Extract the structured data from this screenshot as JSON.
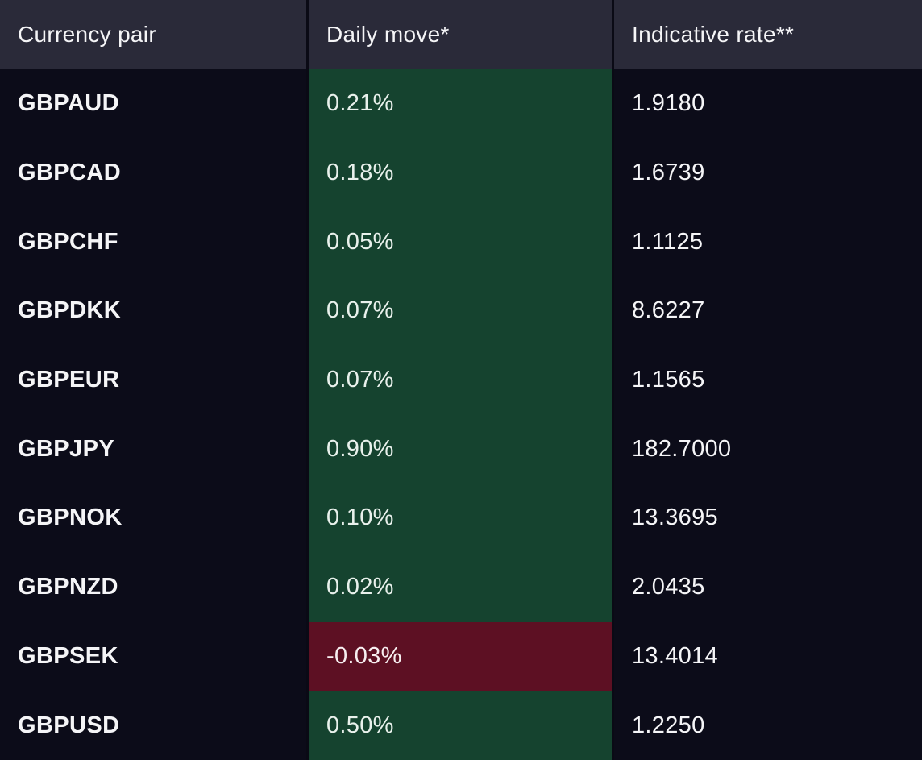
{
  "table": {
    "columns": [
      {
        "label": "Currency pair"
      },
      {
        "label": "Daily move*"
      },
      {
        "label": "Indicative rate**"
      }
    ],
    "rows": [
      {
        "pair": "GBPAUD",
        "daily_move": "0.21%",
        "rate": "1.9180",
        "direction": "up"
      },
      {
        "pair": "GBPCAD",
        "daily_move": "0.18%",
        "rate": "1.6739",
        "direction": "up"
      },
      {
        "pair": "GBPCHF",
        "daily_move": "0.05%",
        "rate": "1.1125",
        "direction": "up"
      },
      {
        "pair": "GBPDKK",
        "daily_move": "0.07%",
        "rate": "8.6227",
        "direction": "up"
      },
      {
        "pair": "GBPEUR",
        "daily_move": "0.07%",
        "rate": "1.1565",
        "direction": "up"
      },
      {
        "pair": "GBPJPY",
        "daily_move": "0.90%",
        "rate": "182.7000",
        "direction": "up"
      },
      {
        "pair": "GBPNOK",
        "daily_move": "0.10%",
        "rate": "13.3695",
        "direction": "up"
      },
      {
        "pair": "GBPNZD",
        "daily_move": "0.02%",
        "rate": "2.0435",
        "direction": "up"
      },
      {
        "pair": "GBPSEK",
        "daily_move": "-0.03%",
        "rate": "13.4014",
        "direction": "down"
      },
      {
        "pair": "GBPUSD",
        "daily_move": "0.50%",
        "rate": "1.2250",
        "direction": "up"
      }
    ]
  },
  "colors": {
    "header_bg": "#2a2a39",
    "row_bg": "#0c0c19",
    "gap_bg": "#0a0a15",
    "positive_bg": "#15432f",
    "negative_bg": "#5d1023",
    "text_primary": "#f5f5f7",
    "text_on_positive": "#e9f1ec",
    "text_on_negative": "#f7eef0"
  }
}
